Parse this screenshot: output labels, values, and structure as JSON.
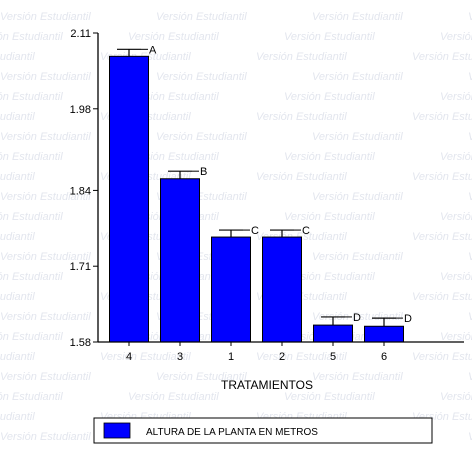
{
  "watermark_text": "Versión Estudiantil",
  "chart_data": {
    "type": "bar",
    "categories": [
      "4",
      "3",
      "1",
      "2",
      "5",
      "6"
    ],
    "series": [
      {
        "name": "ALTURA DE LA PLANTA EN METROS",
        "values": [
          2.07,
          1.86,
          1.76,
          1.76,
          1.609,
          1.607
        ],
        "errors": [
          0.012,
          0.013,
          0.012,
          0.012,
          0.014,
          0.014
        ],
        "significance": [
          "A",
          "B",
          "C",
          "C",
          "D",
          "D"
        ]
      }
    ],
    "xlabel": "TRATAMIENTOS",
    "ylabel": "",
    "yticks": [
      "1.58",
      "1.71",
      "1.84",
      "1.98",
      "2.11"
    ],
    "ylim": [
      1.58,
      2.11
    ],
    "bar_color": "#0000ff",
    "legend_position": "bottom"
  }
}
